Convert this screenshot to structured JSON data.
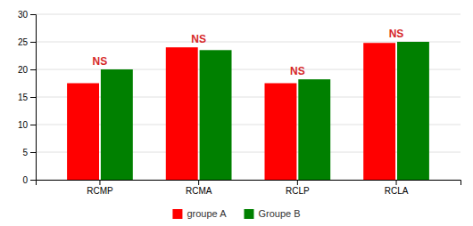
{
  "chart_data": {
    "type": "bar",
    "categories": [
      "RCMP",
      "RCMA",
      "RCLP",
      "RCLA"
    ],
    "series": [
      {
        "name": "groupe A",
        "color": "#ff0000",
        "values": [
          17.5,
          24.0,
          17.5,
          24.8
        ]
      },
      {
        "name": "Groupe B",
        "color": "#008000",
        "values": [
          20.0,
          23.5,
          18.2,
          25.0
        ]
      }
    ],
    "annotations": [
      "NS",
      "NS",
      "NS",
      "NS"
    ],
    "ylim": [
      0,
      30
    ],
    "yticks": [
      0,
      5,
      10,
      15,
      20,
      25,
      30
    ],
    "grid": true,
    "legend": "bottom"
  }
}
